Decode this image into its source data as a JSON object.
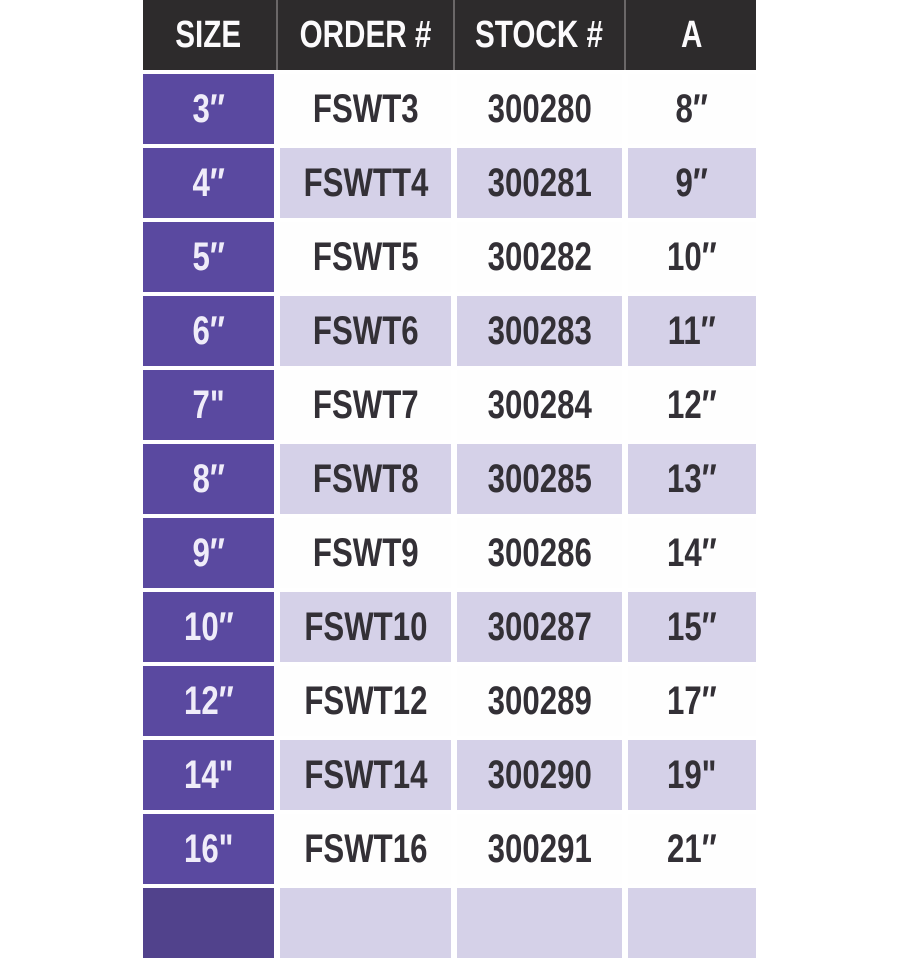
{
  "colors": {
    "header_bg": "#2d2b2c",
    "header_text": "#fbfafc",
    "size_column_bg": "#5a49a0",
    "size_column_text": "#efecf9",
    "alt_row_bg": "#d5d1e8",
    "white_row_bg": "#fefefe",
    "body_text": "#333036",
    "page_bg": "#ffffff"
  },
  "table": {
    "headers": [
      "SIZE",
      "ORDER #",
      "STOCK #",
      "A"
    ],
    "rows": [
      {
        "size": "3″",
        "order": "FSWT3",
        "stock": "300280",
        "a": "8″"
      },
      {
        "size": "4″",
        "order": "FSWTT4",
        "stock": "300281",
        "a": "9″"
      },
      {
        "size": "5″",
        "order": "FSWT5",
        "stock": "300282",
        "a": "10″"
      },
      {
        "size": "6″",
        "order": "FSWT6",
        "stock": "300283",
        "a": "11″"
      },
      {
        "size": "7\"",
        "order": "FSWT7",
        "stock": "300284",
        "a": "12″"
      },
      {
        "size": "8″",
        "order": "FSWT8",
        "stock": "300285",
        "a": "13″"
      },
      {
        "size": "9″",
        "order": "FSWT9",
        "stock": "300286",
        "a": "14″"
      },
      {
        "size": "10″",
        "order": "FSWT10",
        "stock": "300287",
        "a": "15″"
      },
      {
        "size": "12″",
        "order": "FSWT12",
        "stock": "300289",
        "a": "17″"
      },
      {
        "size": "14\"",
        "order": "FSWT14",
        "stock": "300290",
        "a": "19\""
      },
      {
        "size": "16\"",
        "order": "FSWT16",
        "stock": "300291",
        "a": "21″"
      }
    ]
  }
}
